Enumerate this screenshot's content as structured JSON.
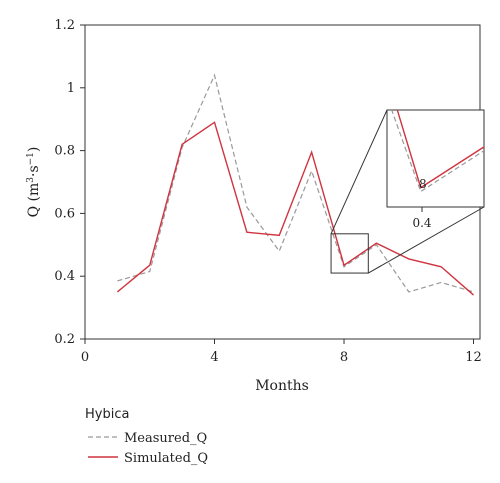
{
  "chart_data": {
    "type": "line",
    "title": "",
    "xlabel": "Months",
    "ylabel_main": "Q (m",
    "ylabel_sup1": "3",
    "ylabel_mid": "·s",
    "ylabel_sup2": "−1",
    "ylabel_end": ")",
    "xlim": [
      0,
      12.2
    ],
    "ylim": [
      0.2,
      1.2
    ],
    "xticks": [
      0,
      4,
      8,
      12
    ],
    "yticks": [
      0.2,
      0.4,
      0.6,
      0.8,
      1.0,
      1.2
    ],
    "xtick_labels": [
      "0",
      "4",
      "8",
      "12"
    ],
    "ytick_labels": [
      "0.2",
      "0.4",
      "0.6",
      "0.8",
      "1",
      "1.2"
    ],
    "x": [
      1,
      2,
      3,
      4,
      5,
      6,
      7,
      8,
      9,
      10,
      11,
      12
    ],
    "series": [
      {
        "name": "Measured_Q",
        "values": [
          0.385,
          0.415,
          0.81,
          1.04,
          0.62,
          0.48,
          0.735,
          0.43,
          0.5,
          0.35,
          0.38,
          0.35
        ],
        "color": "#999999",
        "style": "dashed"
      },
      {
        "name": "Simulated_Q",
        "values": [
          0.35,
          0.435,
          0.82,
          0.89,
          0.54,
          0.53,
          0.795,
          0.435,
          0.505,
          0.455,
          0.43,
          0.34
        ],
        "color": "#d0343f",
        "style": "solid"
      }
    ],
    "inset": {
      "zoom_region_x": [
        7.6,
        8.75
      ],
      "zoom_region_y": [
        0.41,
        0.535
      ],
      "tick_label_x": "8",
      "tick_label_y": "0.4"
    },
    "legend": {
      "title": "Hybica",
      "placement": "bottom-left-outside",
      "entries": [
        "Measured_Q",
        "Simulated_Q"
      ]
    }
  }
}
